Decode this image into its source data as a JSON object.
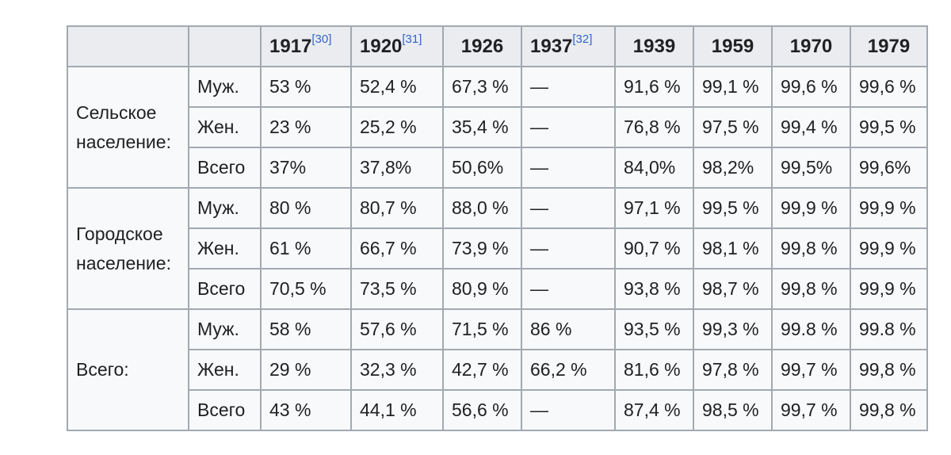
{
  "table": {
    "corner_cells": [
      "",
      ""
    ],
    "years": [
      {
        "year": "1917",
        "ref": "[30]"
      },
      {
        "year": "1920",
        "ref": "[31]"
      },
      {
        "year": "1926",
        "ref": ""
      },
      {
        "year": "1937",
        "ref": "[32]"
      },
      {
        "year": "1939",
        "ref": ""
      },
      {
        "year": "1959",
        "ref": ""
      },
      {
        "year": "1970",
        "ref": ""
      },
      {
        "year": "1979",
        "ref": ""
      }
    ],
    "groups": [
      {
        "label_line1": "Сельское",
        "label_line2": "население:",
        "rows": [
          {
            "sub": "Муж.",
            "values": [
              "53 %",
              "52,4 %",
              "67,3 %",
              "—",
              "91,6 %",
              "99,1 %",
              "99,6 %",
              "99,6 %"
            ]
          },
          {
            "sub": "Жен.",
            "values": [
              "23 %",
              "25,2 %",
              "35,4 %",
              "—",
              "76,8 %",
              "97,5 %",
              "99,4 %",
              "99,5 %"
            ]
          },
          {
            "sub": "Всего",
            "values": [
              "37%",
              "37,8%",
              "50,6%",
              "—",
              "84,0%",
              "98,2%",
              "99,5%",
              "99,6%"
            ]
          }
        ]
      },
      {
        "label_line1": "Городское",
        "label_line2": "население:",
        "rows": [
          {
            "sub": "Муж.",
            "values": [
              "80 %",
              "80,7 %",
              "88,0 %",
              "—",
              "97,1 %",
              "99,5 %",
              "99,9 %",
              "99,9 %"
            ]
          },
          {
            "sub": "Жен.",
            "values": [
              "61 %",
              "66,7 %",
              "73,9 %",
              "—",
              "90,7 %",
              "98,1 %",
              "99,8 %",
              "99,9 %"
            ]
          },
          {
            "sub": "Всего",
            "values": [
              "70,5 %",
              "73,5 %",
              "80,9 %",
              "—",
              "93,8 %",
              "98,7 %",
              "99,8 %",
              "99,9 %"
            ]
          }
        ]
      },
      {
        "label_line1": "Всего:",
        "label_line2": "",
        "rows": [
          {
            "sub": "Муж.",
            "values": [
              "58 %",
              "57,6 %",
              "71,5 %",
              "86 %",
              "93,5 %",
              "99,3 %",
              "99.8 %",
              "99.8 %"
            ]
          },
          {
            "sub": "Жен.",
            "values": [
              "29 %",
              "32,3 %",
              "42,7 %",
              "66,2 %",
              "81,6 %",
              "97,8 %",
              "99,7 %",
              "99,8 %"
            ]
          },
          {
            "sub": "Всего",
            "values": [
              "43 %",
              "44,1 %",
              "56,6 %",
              "—",
              "87,4 %",
              "98,5 %",
              "99,7 %",
              "99,8 %"
            ]
          }
        ]
      }
    ]
  },
  "colors": {
    "border": "#a2a9b1",
    "header_bg": "#eaecf0",
    "cell_bg": "#f8f9fa",
    "text": "#202122",
    "link": "#3366cc"
  }
}
